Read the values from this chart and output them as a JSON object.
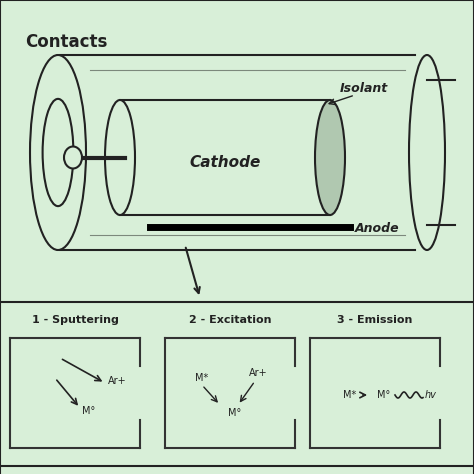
{
  "bg_color": "#d8efd8",
  "border_color": "#555555",
  "title_text": "Contacts",
  "isolant_label": "Isolant",
  "cathode_label": "Cathode",
  "anode_label": "Anode",
  "panel1_title": "1 - Sputtering",
  "panel2_title": "2 - Excitation",
  "panel3_title": "3 - Emission",
  "text_color": "#222222",
  "line_color": "#222222",
  "tube_fill": "#d8efd8",
  "cathode_fill": "#c8e0c8"
}
